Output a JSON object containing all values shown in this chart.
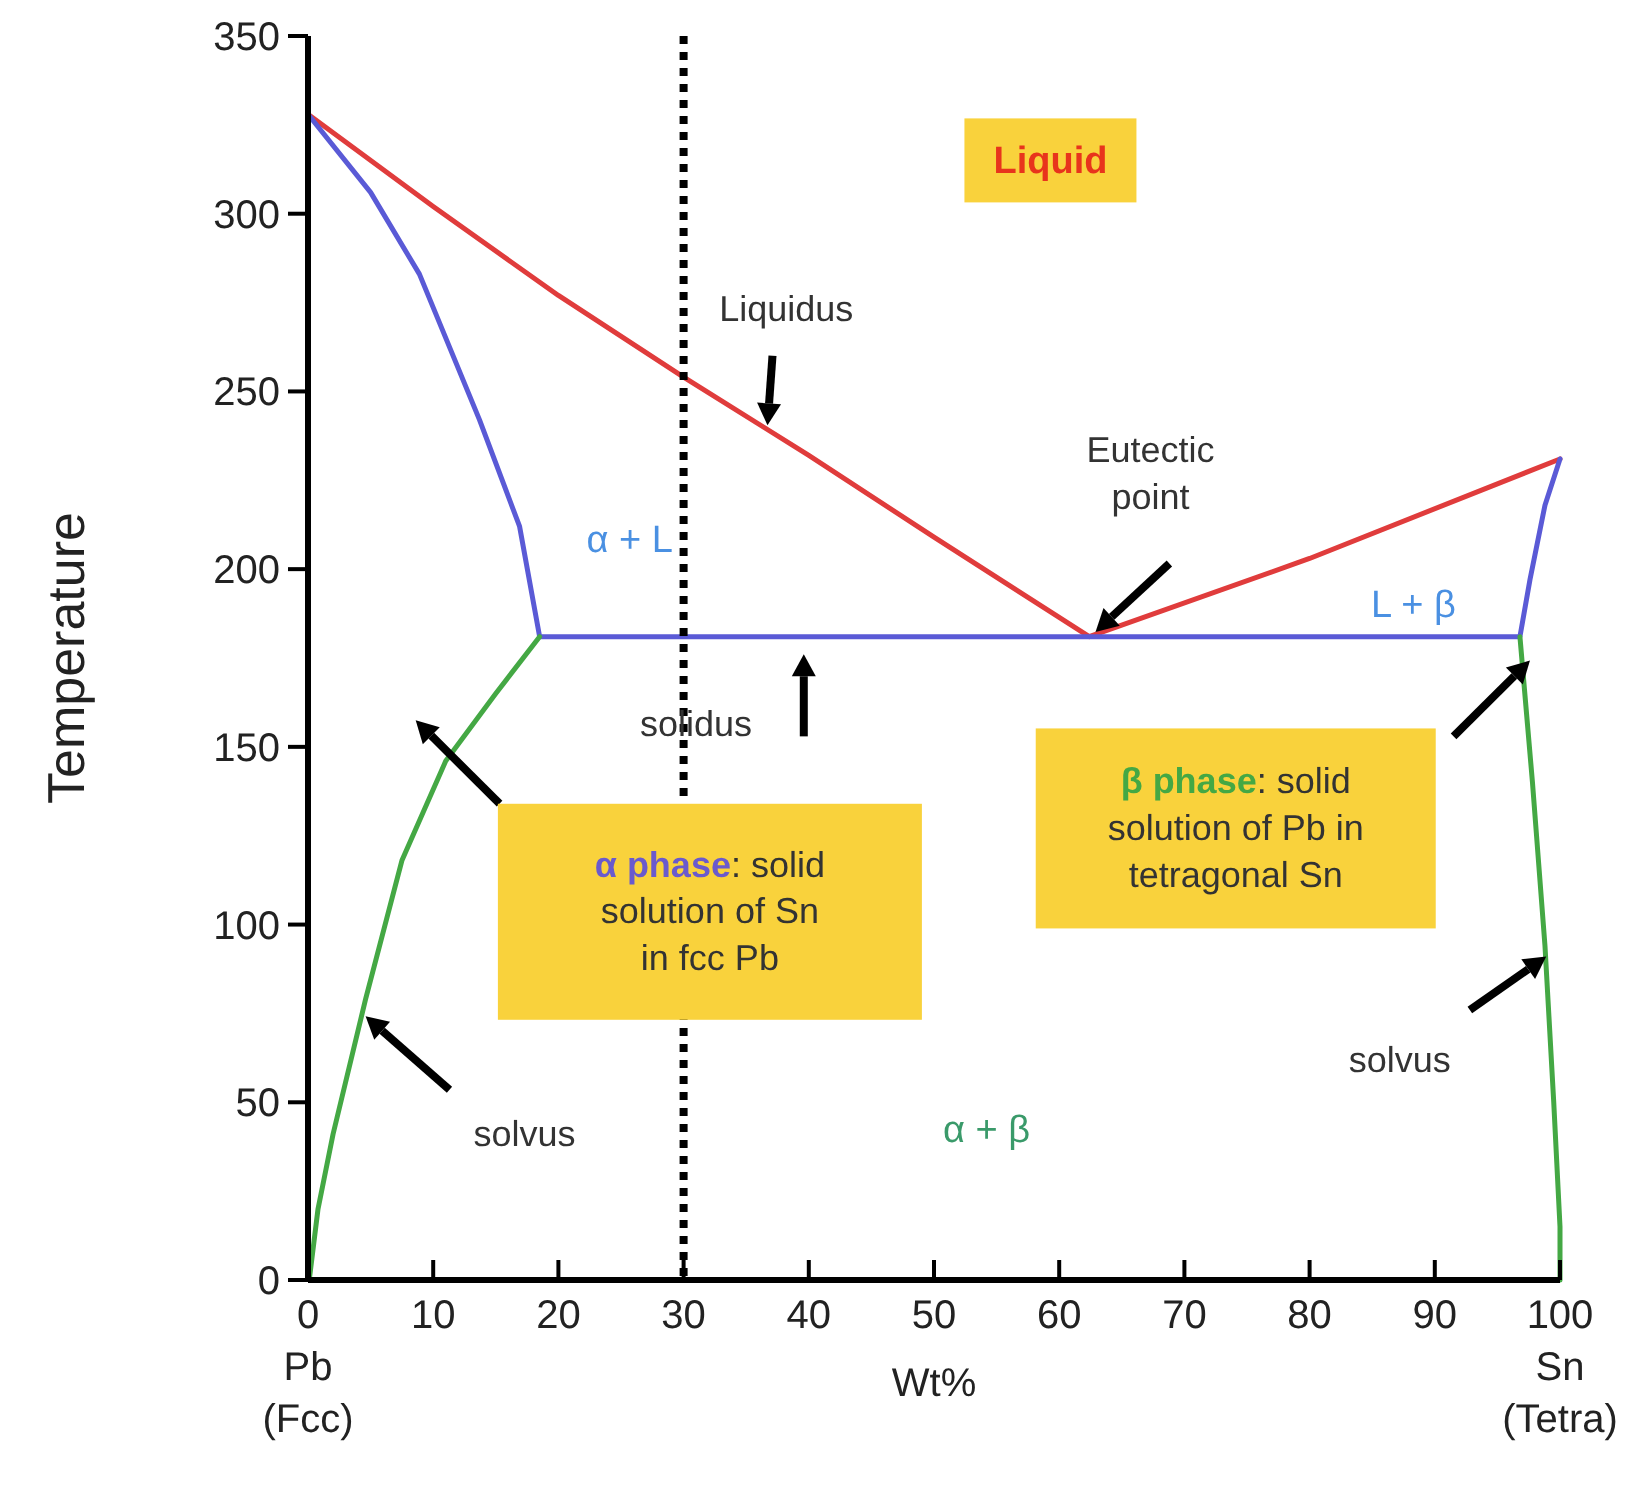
{
  "chart_data": {
    "type": "line",
    "xlabel": "Wt%",
    "ylabel": "Temperature",
    "marker": "none",
    "line_style": "solid",
    "grid": false,
    "xlim": [
      0,
      100
    ],
    "ylim": [
      0,
      350
    ],
    "xticks": [
      {
        "value": 0,
        "label": "0\nPb\n(Fcc)"
      },
      10,
      20,
      30,
      40,
      50,
      60,
      70,
      80,
      90,
      {
        "value": 100,
        "label": "100\nSn\n(Tetra)"
      }
    ],
    "yticks": [
      0,
      50,
      100,
      150,
      200,
      250,
      300,
      350
    ],
    "series": [
      {
        "color": "#e03c3c",
        "x": [
          0,
          10,
          20,
          30,
          40,
          50,
          62.4,
          80,
          100
        ],
        "values": [
          328,
          302,
          277,
          254,
          232,
          209,
          181,
          203,
          231
        ]
      },
      {
        "color": "#5a5ad6",
        "x": [
          0,
          5,
          8.9,
          13.7,
          16.9,
          18.5,
          96.8,
          97.6,
          98.8,
          100
        ],
        "values": [
          328,
          306,
          283,
          242,
          212,
          181,
          181,
          197,
          218,
          231
        ]
      },
      {
        "color": "#44a844",
        "x": [
          18.5,
          15,
          11,
          7.5,
          4.6,
          2,
          0.8,
          0.1
        ],
        "values": [
          181,
          165,
          146,
          118,
          79,
          41,
          20,
          0
        ]
      },
      {
        "color": "#44a844",
        "x": [
          96.8,
          97.8,
          98.8,
          99.5,
          100,
          100
        ],
        "values": [
          181,
          140,
          94,
          50,
          15,
          0
        ]
      }
    ],
    "ref_lines": [
      {
        "axis": "x",
        "value": 30,
        "color": "#000000",
        "line_style": "dotted"
      }
    ],
    "annotations": [
      "Liquid",
      "Liquidus",
      "Eutectic point",
      "α + L",
      "L + β",
      "solidus",
      "α phase: solid solution of Sn in fcc Pb",
      "β phase: solid solution of Pb in tetragonal Sn",
      "solvus",
      "solvus",
      "α + β"
    ]
  }
}
